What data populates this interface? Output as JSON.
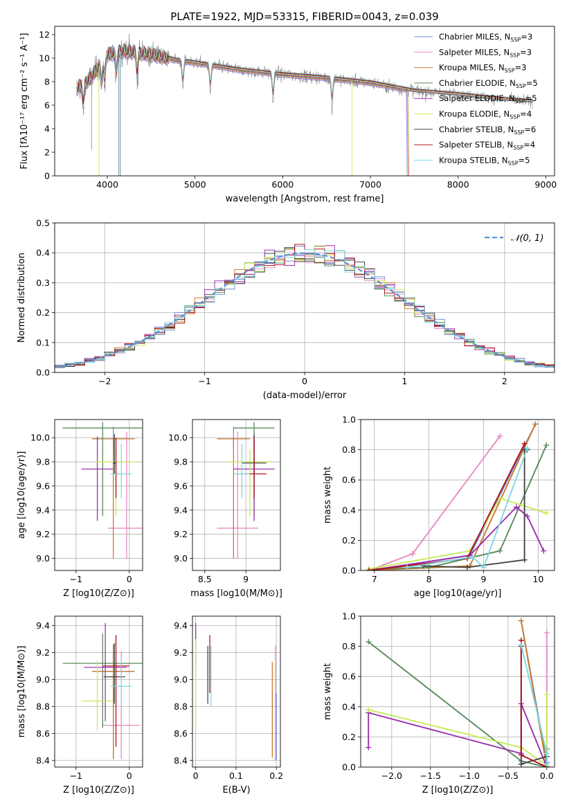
{
  "figure_title": "PLATE=1922, MJD=53315, FIBERID=0043, z=0.039",
  "legend_entries": [
    {
      "label": "Chabrier MILES, N",
      "sub": "SSP",
      "suffix": "=3",
      "color": "#6f8fd8"
    },
    {
      "label": "Salpeter MILES, N",
      "sub": "SSP",
      "suffix": "=3",
      "color": "#e58ac2"
    },
    {
      "label": "Kroupa MILES, N",
      "sub": "SSP",
      "suffix": "=3",
      "color": "#c67a2a"
    },
    {
      "label": "Chabrier ELODIE, N",
      "sub": "SSP",
      "suffix": "=5",
      "color": "#5a8a5e"
    },
    {
      "label": "Salpeter ELODIE, N",
      "sub": "SSP",
      "suffix": "=5",
      "color": "#9b30b0"
    },
    {
      "label": "Kroupa ELODIE, N",
      "sub": "SSP",
      "suffix": "=4",
      "color": "#c8e85a"
    },
    {
      "label": "Chabrier STELIB, N",
      "sub": "SSP",
      "suffix": "=6",
      "color": "#444444"
    },
    {
      "label": "Salpeter STELIB, N",
      "sub": "SSP",
      "suffix": "=4",
      "color": "#b01020"
    },
    {
      "label": "Kroupa STELIB, N",
      "sub": "SSP",
      "suffix": "=5",
      "color": "#7fd8e0"
    }
  ],
  "hist_legend": "𝒩(0, 1)",
  "chart_data": [
    {
      "id": "spectrum",
      "type": "line",
      "title": "PLATE=1922, MJD=53315, FIBERID=0043, z=0.039",
      "xlabel": "wavelength [Angstrom, rest frame]",
      "ylabel": "Flux [fλ10⁻¹⁷ erg cm⁻² s⁻¹ A⁻¹]",
      "xlim": [
        3400,
        9100
      ],
      "ylim": [
        0,
        12.7
      ],
      "xticks": [
        4000,
        5000,
        6000,
        7000,
        8000,
        9000
      ],
      "yticks": [
        0,
        2,
        4,
        6,
        8,
        10,
        12
      ],
      "data_color": "#808080",
      "continuum": [
        [
          3650,
          7.4
        ],
        [
          3800,
          8.2
        ],
        [
          4000,
          10.3
        ],
        [
          4200,
          10.6
        ],
        [
          4500,
          10.3
        ],
        [
          4800,
          9.8
        ],
        [
          5000,
          9.6
        ],
        [
          5500,
          9.0
        ],
        [
          6000,
          8.6
        ],
        [
          6500,
          8.3
        ],
        [
          7000,
          7.9
        ],
        [
          7500,
          7.2
        ],
        [
          8000,
          6.9
        ],
        [
          8500,
          6.5
        ],
        [
          8850,
          6.3
        ]
      ]
    },
    {
      "id": "residual_hist",
      "type": "bar",
      "xlabel": "(data-model)/error",
      "ylabel": "Normed distribution",
      "xlim": [
        -2.5,
        2.5
      ],
      "ylim": [
        0,
        0.5
      ],
      "xticks": [
        -2,
        -1,
        0,
        1,
        2
      ],
      "yticks": [
        0.0,
        0.1,
        0.2,
        0.3,
        0.4,
        0.5
      ],
      "grid": true,
      "legend_position": "top-right",
      "gaussian": {
        "mean": 0,
        "sigma": 1,
        "color": "#5b8fd6"
      }
    },
    {
      "id": "age_vs_Z",
      "type": "scatter",
      "xlabel": "Z [log10(Z/Z⊙)]",
      "ylabel": "age  [log10(age/yr)]",
      "xlim": [
        -1.4,
        0.25
      ],
      "ylim": [
        8.9,
        10.15
      ],
      "xticks": [
        -1,
        0
      ],
      "yticks": [
        9.0,
        9.2,
        9.4,
        9.6,
        9.8,
        10.0
      ],
      "grid": true,
      "points": [
        {
          "series": "Chabrier MILES",
          "x": -0.3,
          "y": 9.99,
          "xerr": 0.4,
          "yerr_lo": 0.1,
          "yerr_hi": 0.1
        },
        {
          "series": "Salpeter MILES",
          "x": -0.05,
          "y": 9.25,
          "xerr": 0.35,
          "yerr_lo": 0.25,
          "yerr_hi": 0.8
        },
        {
          "series": "Kroupa MILES",
          "x": -0.3,
          "y": 9.99,
          "xerr": 0.4,
          "yerr_lo": 0.99,
          "yerr_hi": 0.01
        },
        {
          "series": "Chabrier ELODIE",
          "x": -0.5,
          "y": 10.08,
          "xerr": 0.75,
          "yerr_lo": 0.73,
          "yerr_hi": 0.05
        },
        {
          "series": "Salpeter ELODIE",
          "x": -0.6,
          "y": 9.74,
          "xerr": 0.3,
          "yerr_lo": 0.43,
          "yerr_hi": 0.27
        },
        {
          "series": "Kroupa ELODIE",
          "x": -0.25,
          "y": 9.8,
          "xerr": 0.4,
          "yerr_lo": 0.45,
          "yerr_hi": 0.1
        },
        {
          "series": "Chabrier STELIB",
          "x": -0.28,
          "y": 9.79,
          "xerr": 0.03,
          "yerr_lo": 0.09,
          "yerr_hi": 0.24
        },
        {
          "series": "Salpeter STELIB",
          "x": -0.25,
          "y": 9.7,
          "xerr": 0.05,
          "yerr_lo": 0.2,
          "yerr_hi": 0.3
        },
        {
          "series": "Kroupa STELIB",
          "x": -0.15,
          "y": 9.7,
          "xerr": 0.2,
          "yerr_lo": 0.2,
          "yerr_hi": 0.25
        }
      ]
    },
    {
      "id": "age_vs_mass",
      "type": "scatter",
      "xlabel": "mass [log10(M/M⊙)]",
      "ylabel": "",
      "xlim": [
        8.35,
        9.42
      ],
      "ylim": [
        8.9,
        10.15
      ],
      "xticks": [
        8.5,
        9.0
      ],
      "yticks": [
        9.0,
        9.2,
        9.4,
        9.6,
        9.8,
        10.0
      ],
      "grid": true,
      "points": [
        {
          "series": "Chabrier MILES",
          "x": 8.85,
          "y": 9.99,
          "xerr": 0.2,
          "yerr_lo": 0.1,
          "yerr_hi": 0.1
        },
        {
          "series": "Salpeter MILES",
          "x": 8.9,
          "y": 9.25,
          "xerr": 0.25,
          "yerr_lo": 0.25,
          "yerr_hi": 0.8
        },
        {
          "series": "Kroupa MILES",
          "x": 8.85,
          "y": 9.99,
          "xerr": 0.2,
          "yerr_lo": 0.99,
          "yerr_hi": 0.01
        },
        {
          "series": "Chabrier ELODIE",
          "x": 9.1,
          "y": 10.08,
          "xerr": 0.25,
          "yerr_lo": 0.73,
          "yerr_hi": 0.05
        },
        {
          "series": "Salpeter ELODIE",
          "x": 9.1,
          "y": 9.74,
          "xerr": 0.25,
          "yerr_lo": 0.43,
          "yerr_hi": 0.27
        },
        {
          "series": "Kroupa ELODIE",
          "x": 9.05,
          "y": 9.8,
          "xerr": 0.25,
          "yerr_lo": 0.45,
          "yerr_hi": 0.1
        },
        {
          "series": "Chabrier STELIB",
          "x": 9.1,
          "y": 9.79,
          "xerr": 0.15,
          "yerr_lo": 0.09,
          "yerr_hi": 0.24
        },
        {
          "series": "Salpeter STELIB",
          "x": 9.1,
          "y": 9.7,
          "xerr": 0.15,
          "yerr_lo": 0.2,
          "yerr_hi": 0.3
        },
        {
          "series": "Kroupa STELIB",
          "x": 8.95,
          "y": 9.7,
          "xerr": 0.1,
          "yerr_lo": 0.2,
          "yerr_hi": 0.25
        }
      ]
    },
    {
      "id": "mass_weight_vs_age",
      "type": "line",
      "xlabel": "age  [log10(age/yr)]",
      "ylabel": "mass weight",
      "xlim": [
        6.75,
        10.3
      ],
      "ylim": [
        0,
        1.0
      ],
      "xticks": [
        7,
        8,
        9,
        10
      ],
      "yticks": [
        0.0,
        0.2,
        0.4,
        0.6,
        0.8,
        1.0
      ],
      "grid": true,
      "series": [
        {
          "name": "Chabrier MILES",
          "x": [
            6.9,
            8.75,
            9.95
          ],
          "y": [
            0.0,
            0.1,
            0.97
          ]
        },
        {
          "name": "Salpeter MILES",
          "x": [
            6.9,
            7.7,
            9.3
          ],
          "y": [
            0.0,
            0.11,
            0.89
          ]
        },
        {
          "name": "Kroupa MILES",
          "x": [
            6.9,
            8.75,
            9.95
          ],
          "y": [
            0.0,
            0.03,
            0.97
          ]
        },
        {
          "name": "Chabrier ELODIE",
          "x": [
            6.9,
            8.0,
            9.3,
            10.15
          ],
          "y": [
            0.01,
            0.02,
            0.13,
            0.83
          ]
        },
        {
          "name": "Salpeter ELODIE",
          "x": [
            6.9,
            8.75,
            9.6,
            9.8,
            10.1
          ],
          "y": [
            0.0,
            0.1,
            0.42,
            0.36,
            0.13
          ]
        },
        {
          "name": "Kroupa ELODIE",
          "x": [
            6.9,
            8.75,
            9.3,
            10.15
          ],
          "y": [
            0.01,
            0.13,
            0.48,
            0.38
          ]
        },
        {
          "name": "Chabrier STELIB",
          "x": [
            7.9,
            8.7,
            9.75,
            9.75,
            9.8
          ],
          "y": [
            0.03,
            0.02,
            0.07,
            0.8,
            0.8
          ]
        },
        {
          "name": "Salpeter STELIB",
          "x": [
            6.9,
            8.7,
            9.75
          ],
          "y": [
            0.0,
            0.08,
            0.84
          ]
        },
        {
          "name": "Kroupa STELIB",
          "x": [
            7.6,
            8.8,
            9.0,
            9.8
          ],
          "y": [
            0.02,
            0.09,
            0.02,
            0.81
          ]
        }
      ]
    },
    {
      "id": "mass_vs_Z",
      "type": "scatter",
      "xlabel": "Z [log10(Z/Z⊙)]",
      "ylabel": "mass [log10(M/M⊙)]",
      "xlim": [
        -1.4,
        0.25
      ],
      "ylim": [
        8.35,
        9.47
      ],
      "xticks": [
        -1,
        0
      ],
      "yticks": [
        8.4,
        8.6,
        8.8,
        9.0,
        9.2,
        9.4
      ],
      "grid": true,
      "points": [
        {
          "series": "Chabrier MILES",
          "x": -0.3,
          "y": 9.06,
          "xerr": 0.4,
          "yerr_lo": 0.65,
          "yerr_hi": 0.2
        },
        {
          "series": "Salpeter MILES",
          "x": -0.15,
          "y": 8.66,
          "xerr": 0.35,
          "yerr_lo": 0.25,
          "yerr_hi": 0.55
        },
        {
          "series": "Kroupa MILES",
          "x": -0.3,
          "y": 9.06,
          "xerr": 0.4,
          "yerr_lo": 0.65,
          "yerr_hi": 0.2
        },
        {
          "series": "Chabrier ELODIE",
          "x": -0.5,
          "y": 9.12,
          "xerr": 0.75,
          "yerr_lo": 0.48,
          "yerr_hi": 0.22
        },
        {
          "series": "Salpeter ELODIE",
          "x": -0.45,
          "y": 9.09,
          "xerr": 0.4,
          "yerr_lo": 0.4,
          "yerr_hi": 0.33
        },
        {
          "series": "Kroupa ELODIE",
          "x": -0.6,
          "y": 8.84,
          "xerr": 0.3,
          "yerr_lo": 0.22,
          "yerr_hi": 0.3
        },
        {
          "series": "Chabrier STELIB",
          "x": -0.28,
          "y": 9.02,
          "xerr": 0.2,
          "yerr_lo": 0.2,
          "yerr_hi": 0.25
        },
        {
          "series": "Salpeter STELIB",
          "x": -0.25,
          "y": 9.1,
          "xerr": 0.25,
          "yerr_lo": 0.6,
          "yerr_hi": 0.23
        },
        {
          "series": "Kroupa STELIB",
          "x": -0.15,
          "y": 8.95,
          "xerr": 0.2,
          "yerr_lo": 0.15,
          "yerr_hi": 0.2
        }
      ]
    },
    {
      "id": "mass_vs_ebv",
      "type": "scatter",
      "xlabel": "E(B-V)",
      "ylabel": "",
      "xlim": [
        -0.008,
        0.21
      ],
      "ylim": [
        8.35,
        9.47
      ],
      "xticks": [
        0.0,
        0.1,
        0.2
      ],
      "yticks": [
        8.4,
        8.6,
        8.8,
        9.0,
        9.2,
        9.4
      ],
      "grid": true,
      "points": [
        {
          "series": "Chabrier MILES",
          "x": 0.2,
          "y": 8.6,
          "xerr": 0,
          "yerr_lo": 0.2,
          "yerr_hi": 0.3
        },
        {
          "series": "Salpeter MILES",
          "x": 0.198,
          "y": 8.9,
          "xerr": 0,
          "yerr_lo": 0.5,
          "yerr_hi": 0.35
        },
        {
          "series": "Kroupa MILES",
          "x": 0.19,
          "y": 8.78,
          "xerr": 0,
          "yerr_lo": 0.36,
          "yerr_hi": 0.35
        },
        {
          "series": "Chabrier ELODIE",
          "x": 0.0,
          "y": 9.2,
          "xerr": 0,
          "yerr_lo": 0.12,
          "yerr_hi": 0.15
        },
        {
          "series": "Salpeter ELODIE",
          "x": 0.0,
          "y": 9.35,
          "xerr": 0,
          "yerr_lo": 0.05,
          "yerr_hi": 0.07
        },
        {
          "series": "Kroupa ELODIE",
          "x": 0.0,
          "y": 8.95,
          "xerr": 0,
          "yerr_lo": 0.32,
          "yerr_hi": 0.35
        },
        {
          "series": "Chabrier STELIB",
          "x": 0.03,
          "y": 9.0,
          "xerr": 0,
          "yerr_lo": 0.18,
          "yerr_hi": 0.25
        },
        {
          "series": "Salpeter STELIB",
          "x": 0.035,
          "y": 9.1,
          "xerr": 0,
          "yerr_lo": 0.2,
          "yerr_hi": 0.23
        },
        {
          "series": "Kroupa STELIB",
          "x": 0.038,
          "y": 9.0,
          "xerr": 0,
          "yerr_lo": 0.2,
          "yerr_hi": 0.25
        }
      ]
    },
    {
      "id": "mass_weight_vs_Z",
      "type": "line",
      "xlabel": "Z [log10(Z/Z⊙)]",
      "ylabel": "mass weight",
      "xlim": [
        -2.4,
        0.1
      ],
      "ylim": [
        0,
        1.0
      ],
      "xticks": [
        -2.0,
        -1.5,
        -1.0,
        -0.5,
        0.0
      ],
      "yticks": [
        0.0,
        0.2,
        0.4,
        0.6,
        0.8,
        1.0
      ],
      "grid": true,
      "series": [
        {
          "name": "Chabrier MILES",
          "x": [
            -0.33,
            0.0
          ],
          "y": [
            0.97,
            0.03
          ]
        },
        {
          "name": "Salpeter MILES",
          "x": [
            0.0,
            0.0
          ],
          "y": [
            0.89,
            0.0
          ]
        },
        {
          "name": "Kroupa MILES",
          "x": [
            -0.33,
            0.0
          ],
          "y": [
            0.97,
            0.0
          ]
        },
        {
          "name": "Chabrier ELODIE",
          "x": [
            -2.3,
            -0.33,
            0.0,
            0.0
          ],
          "y": [
            0.83,
            0.04,
            0.0,
            0.12
          ]
        },
        {
          "name": "Salpeter ELODIE",
          "x": [
            -2.3,
            -2.3,
            -0.33,
            -0.33,
            0.0
          ],
          "y": [
            0.13,
            0.36,
            0.09,
            0.42,
            0.0
          ]
        },
        {
          "name": "Kroupa ELODIE",
          "x": [
            -2.3,
            -0.33,
            0.0,
            0.0
          ],
          "y": [
            0.38,
            0.13,
            0.01,
            0.48
          ]
        },
        {
          "name": "Chabrier STELIB",
          "x": [
            -0.33,
            -0.33,
            0.0,
            -0.33
          ],
          "y": [
            0.8,
            0.02,
            0.07,
            0.02
          ]
        },
        {
          "name": "Salpeter STELIB",
          "x": [
            -0.33,
            -0.33,
            0.0
          ],
          "y": [
            0.84,
            0.08,
            0.0
          ]
        },
        {
          "name": "Kroupa STELIB",
          "x": [
            -0.33,
            0.0,
            0.0
          ],
          "y": [
            0.81,
            0.09,
            0.02
          ]
        }
      ]
    }
  ]
}
